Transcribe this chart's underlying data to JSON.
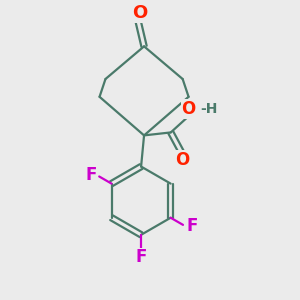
{
  "background_color": "#ebebeb",
  "bond_color": "#4a7a6a",
  "O_color": "#ff2200",
  "F_color": "#cc00cc",
  "line_width": 1.6,
  "figsize": [
    3.0,
    3.0
  ],
  "dpi": 100,
  "xlim": [
    0,
    10
  ],
  "ylim": [
    0,
    10
  ]
}
